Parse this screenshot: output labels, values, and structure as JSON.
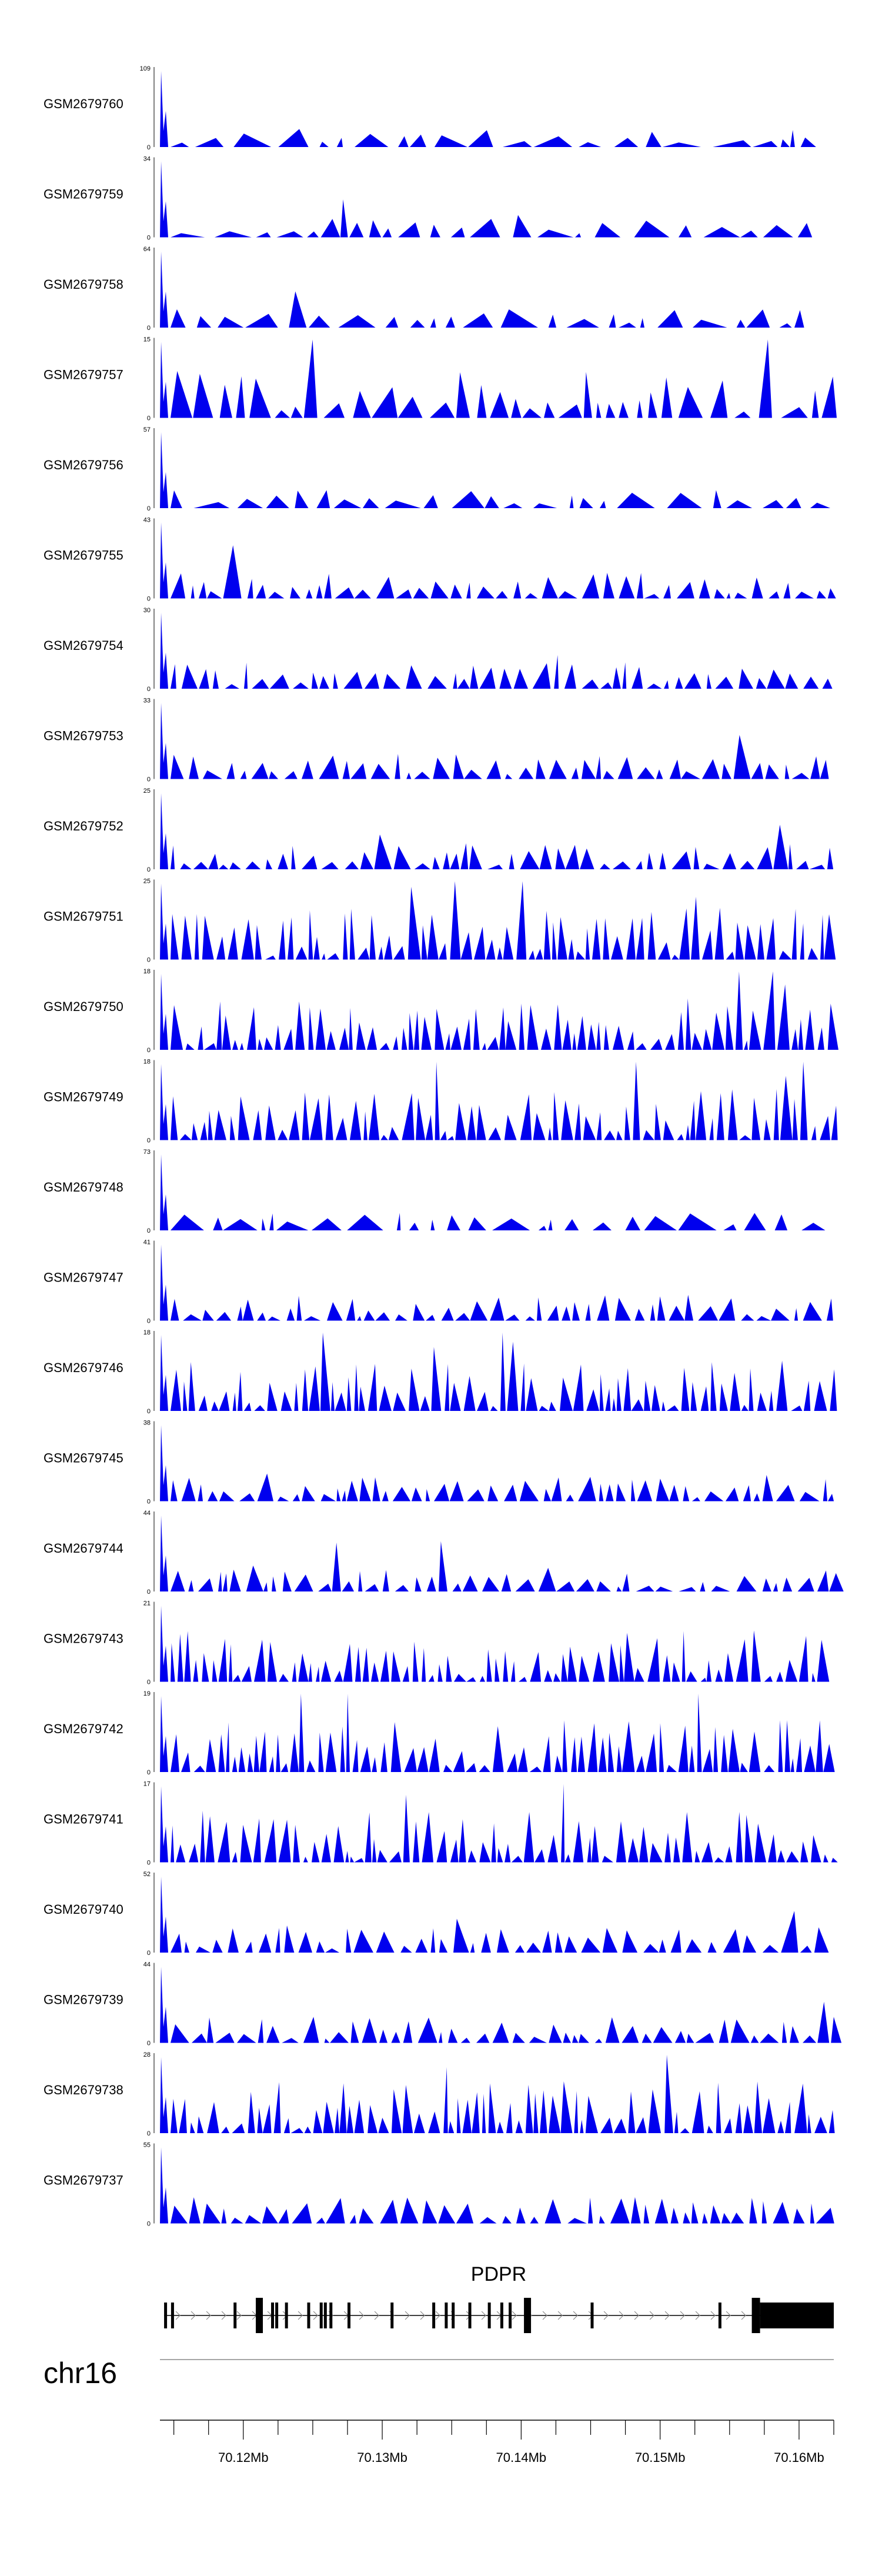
{
  "chart_data": {
    "type": "area",
    "title": "",
    "chromosome": "chr16",
    "gene": "PDPR",
    "colors": {
      "track": "#0000ee",
      "axis": "#000000",
      "gene": "#000000"
    },
    "x_axis": {
      "ticks": [
        "70.12Mb",
        "70.13Mb",
        "70.14Mb",
        "70.15Mb",
        "70.16Mb"
      ],
      "tick_values": [
        70.12,
        70.13,
        70.14,
        70.15,
        70.16
      ],
      "range": [
        70.114,
        70.1625
      ]
    },
    "tracks": [
      {
        "name": "GSM2679760",
        "ymax": "109",
        "ymin": "0",
        "max": 109,
        "seed": 1,
        "style": "sparse"
      },
      {
        "name": "GSM2679759",
        "ymax": "34",
        "ymin": "0",
        "max": 34,
        "seed": 2,
        "style": "sparse"
      },
      {
        "name": "GSM2679758",
        "ymax": "64",
        "ymin": "0",
        "max": 64,
        "seed": 3,
        "style": "sparse"
      },
      {
        "name": "GSM2679757",
        "ymax": "15",
        "ymin": "0",
        "max": 15,
        "seed": 4,
        "style": "wide"
      },
      {
        "name": "GSM2679756",
        "ymax": "57",
        "ymin": "0",
        "max": 57,
        "seed": 5,
        "style": "sparse"
      },
      {
        "name": "GSM2679755",
        "ymax": "43",
        "ymin": "0",
        "max": 43,
        "seed": 6,
        "style": "medium"
      },
      {
        "name": "GSM2679754",
        "ymax": "30",
        "ymin": "0",
        "max": 30,
        "seed": 7,
        "style": "medium"
      },
      {
        "name": "GSM2679753",
        "ymax": "33",
        "ymin": "0",
        "max": 33,
        "seed": 8,
        "style": "medium"
      },
      {
        "name": "GSM2679752",
        "ymax": "25",
        "ymin": "0",
        "max": 25,
        "seed": 9,
        "style": "medium"
      },
      {
        "name": "GSM2679751",
        "ymax": "25",
        "ymin": "0",
        "max": 25,
        "seed": 10,
        "style": "dense"
      },
      {
        "name": "GSM2679750",
        "ymax": "18",
        "ymin": "0",
        "max": 18,
        "seed": 11,
        "style": "dense"
      },
      {
        "name": "GSM2679749",
        "ymax": "18",
        "ymin": "0",
        "max": 18,
        "seed": 12,
        "style": "dense"
      },
      {
        "name": "GSM2679748",
        "ymax": "73",
        "ymin": "0",
        "max": 73,
        "seed": 13,
        "style": "sparse"
      },
      {
        "name": "GSM2679747",
        "ymax": "41",
        "ymin": "0",
        "max": 41,
        "seed": 14,
        "style": "medium"
      },
      {
        "name": "GSM2679746",
        "ymax": "18",
        "ymin": "0",
        "max": 18,
        "seed": 15,
        "style": "dense"
      },
      {
        "name": "GSM2679745",
        "ymax": "38",
        "ymin": "0",
        "max": 38,
        "seed": 16,
        "style": "medium"
      },
      {
        "name": "GSM2679744",
        "ymax": "44",
        "ymin": "0",
        "max": 44,
        "seed": 17,
        "style": "medium"
      },
      {
        "name": "GSM2679743",
        "ymax": "21",
        "ymin": "0",
        "max": 21,
        "seed": 18,
        "style": "dense"
      },
      {
        "name": "GSM2679742",
        "ymax": "19",
        "ymin": "0",
        "max": 19,
        "seed": 19,
        "style": "dense"
      },
      {
        "name": "GSM2679741",
        "ymax": "17",
        "ymin": "0",
        "max": 17,
        "seed": 20,
        "style": "dense"
      },
      {
        "name": "GSM2679740",
        "ymax": "52",
        "ymin": "0",
        "max": 52,
        "seed": 21,
        "style": "medium"
      },
      {
        "name": "GSM2679739",
        "ymax": "44",
        "ymin": "0",
        "max": 44,
        "seed": 22,
        "style": "medium"
      },
      {
        "name": "GSM2679738",
        "ymax": "28",
        "ymin": "0",
        "max": 28,
        "seed": 23,
        "style": "dense"
      },
      {
        "name": "GSM2679737",
        "ymax": "55",
        "ymin": "0",
        "max": 55,
        "seed": 24,
        "style": "medium"
      }
    ],
    "gene_model": {
      "tx_start": 70.1143,
      "tx_end": 70.1625,
      "utr_start": 70.1566,
      "exons": [
        70.1143,
        70.1148,
        70.1193,
        70.1209,
        70.122,
        70.1223,
        70.123,
        70.1246,
        70.1255,
        70.1258,
        70.1262,
        70.1275,
        70.1306,
        70.1336,
        70.1345,
        70.135,
        70.1362,
        70.1376,
        70.1385,
        70.1391,
        70.1402,
        70.145,
        70.1542
      ]
    }
  }
}
